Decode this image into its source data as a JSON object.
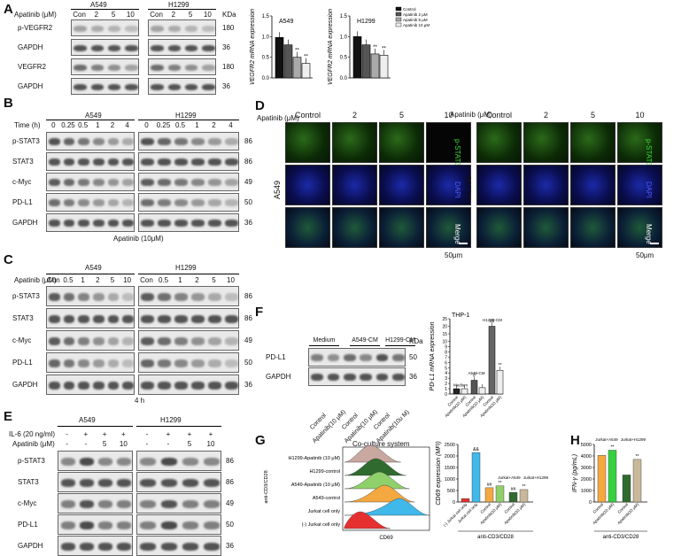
{
  "panels": {
    "A": {
      "letter": "A",
      "treatment_label": "Apatinib (μM)",
      "cell_lines": [
        "A549",
        "H1299"
      ],
      "lanes": [
        "Con",
        "2",
        "5",
        "10",
        "Con",
        "2",
        "5",
        "10"
      ],
      "kda_header": "KDa",
      "rows": [
        {
          "label": "p-VEGFR2",
          "kda": "180"
        },
        {
          "label": "GAPDH",
          "kda": "36"
        },
        {
          "label": "VEGFR2",
          "kda": "180"
        },
        {
          "label": "GAPDH",
          "kda": "36"
        }
      ]
    },
    "A_charts": {
      "legend": [
        "Control",
        "Apatinib 2 μM",
        "Apatinib 5 μM",
        "Apatinib 10 μM"
      ],
      "ylabel": "VEGFR2 mRNA expression",
      "charts": [
        {
          "title": "A549",
          "values": [
            0.98,
            0.8,
            0.5,
            0.35
          ],
          "sig": [
            "",
            "",
            "**",
            "**"
          ]
        },
        {
          "title": "H1299",
          "values": [
            1.0,
            0.8,
            0.58,
            0.55
          ],
          "sig": [
            "",
            "",
            "**",
            "**"
          ]
        }
      ],
      "yticks": [
        "0.0",
        "0.5",
        "1.0",
        "1.5"
      ],
      "ylim": [
        0,
        1.5
      ]
    },
    "B": {
      "letter": "B",
      "time_label": "Time (h)",
      "cell_lines": [
        "A549",
        "H1299"
      ],
      "lanes": [
        "0",
        "0.25",
        "0.5",
        "1",
        "2",
        "4",
        "0",
        "0.25",
        "0.5",
        "1",
        "2",
        "4"
      ],
      "rows": [
        {
          "label": "p-STAT3",
          "kda": "86"
        },
        {
          "label": "STAT3",
          "kda": "86"
        },
        {
          "label": "c-Myc",
          "kda": "49"
        },
        {
          "label": "PD-L1",
          "kda": "50"
        },
        {
          "label": "GAPDH",
          "kda": "36"
        }
      ],
      "footer": "Apatinib (10μM)"
    },
    "C": {
      "letter": "C",
      "treatment_label": "Apatinib (μM)",
      "cell_lines": [
        "A549",
        "H1299"
      ],
      "lanes": [
        "Con",
        "0.5",
        "1",
        "2",
        "5",
        "10",
        "Con",
        "0.5",
        "1",
        "2",
        "5",
        "10"
      ],
      "rows": [
        {
          "label": "p-STAT3",
          "kda": "86"
        },
        {
          "label": "STAT3",
          "kda": "86"
        },
        {
          "label": "c-Myc",
          "kda": "49"
        },
        {
          "label": "PD-L1",
          "kda": "50"
        },
        {
          "label": "GAPDH",
          "kda": "36"
        }
      ],
      "footer": "4 h"
    },
    "D": {
      "letter": "D",
      "treatment_label": "Apatinib (μM)",
      "cols": [
        "Control",
        "2",
        "5",
        "10"
      ],
      "cell_lines": [
        "A549",
        "H1299"
      ],
      "channels": [
        "p-STAT3",
        "DAPI",
        "Merge"
      ],
      "scale": "50μm"
    },
    "E": {
      "letter": "E",
      "cell_lines": [
        "A549",
        "H1299"
      ],
      "il6_label": "IL-6 (20 ng/ml)",
      "apatinib_label": "Apatinib (μM)",
      "il6": [
        "-",
        "+",
        "+",
        "+",
        "-",
        "+",
        "+",
        "+"
      ],
      "apatinib": [
        "-",
        "-",
        "5",
        "10",
        "-",
        "-",
        "5",
        "10"
      ],
      "rows": [
        {
          "label": "p-STAT3",
          "kda": "86"
        },
        {
          "label": "STAT3",
          "kda": "86"
        },
        {
          "label": "c-Myc",
          "kda": "49"
        },
        {
          "label": "PD-L1",
          "kda": "50"
        },
        {
          "label": "GAPDH",
          "kda": "36"
        }
      ]
    },
    "F": {
      "letter": "F",
      "groups": [
        "Medium",
        "A549-CM",
        "H1299-CM"
      ],
      "kda_header": "KDa",
      "rows": [
        {
          "label": "PD-L1",
          "kda": "50"
        },
        {
          "label": "GAPDH",
          "kda": "36"
        }
      ],
      "lane_labels": [
        "Control",
        "Apatinib(10 μM)",
        "Control",
        "Apatinib(10 μM)",
        "Control",
        "Apatinib(10u M)"
      ]
    },
    "F_chart": {
      "title": "THP-1",
      "ylabel": "PD-L1 mRNA expression",
      "groups": [
        "Medium",
        "A549-CM",
        "H1299-CM"
      ],
      "categories": [
        "Control",
        "Apatinib(10 μM)",
        "Control",
        "Apatinib(10 μM)",
        "Control",
        "Apatinib(10 μM)"
      ],
      "values": [
        1.0,
        1.0,
        2.6,
        1.2,
        20,
        4.5
      ],
      "sig": [
        "",
        "",
        "#",
        "",
        "##",
        "**"
      ],
      "yticks": [
        "0",
        "1",
        "2",
        "3",
        "4",
        "5",
        "6",
        "7",
        "8",
        "9",
        "10",
        "15",
        "20",
        "25"
      ]
    },
    "G": {
      "letter": "G",
      "flow_title": "Co-culture system",
      "flow_xlabel": "CD69",
      "side_label": "anti-CD3/CD28",
      "flow_rows": [
        "H1299-Apatinib (10 μM)",
        "H1299-control",
        "A549-Apatinib (10 μM)",
        "A549-control",
        "Jurkat cell only",
        "(-)  Jurkat cell only"
      ],
      "flow_colors": [
        "#c9a8a0",
        "#2f6b2f",
        "#8fd06a",
        "#f4a840",
        "#40b8ea",
        "#e63030"
      ],
      "bar": {
        "ylabel": "CD69 expression (MFI)",
        "yticks": [
          "0",
          "500",
          "1000",
          "1500",
          "2000",
          "2500"
        ],
        "ylim": [
          0,
          2500
        ],
        "categories": [
          "(-) Jurkat cell only",
          "Jurkat cell only",
          "Control",
          "Apatinib(10 μM)",
          "Control",
          "Apatinib(10 μM)"
        ],
        "values": [
          150,
          2150,
          620,
          700,
          420,
          540
        ],
        "colors": [
          "#e63030",
          "#40b8ea",
          "#f4a840",
          "#8fd06a",
          "#2f6b2f",
          "#c9b89a"
        ],
        "sig": [
          "",
          "&&",
          "##",
          "**",
          "##",
          "**"
        ],
        "group_labels": [
          "Jurkat+A549",
          "Jurkat+H1299"
        ],
        "xlabel": "anti-CD3/CD28"
      }
    },
    "H": {
      "letter": "H",
      "ylabel": "IFN-γ (pg/mL)",
      "yticks": [
        "0",
        "1000",
        "2000",
        "3000",
        "4000",
        "5000"
      ],
      "ylim": [
        0,
        5000
      ],
      "categories": [
        "Control",
        "Apatinib(10 μM)",
        "Control",
        "Apatinib(10 μM)"
      ],
      "values": [
        4050,
        4500,
        2350,
        3700
      ],
      "colors": [
        "#f4a840",
        "#37d040",
        "#2f6b2f",
        "#c9b89a"
      ],
      "sig": [
        "",
        "**",
        "",
        "**"
      ],
      "group_labels": [
        "Jurkat+A549",
        "Jurkat+H1299"
      ],
      "xlabel": "anti-CD3/CD28"
    }
  }
}
